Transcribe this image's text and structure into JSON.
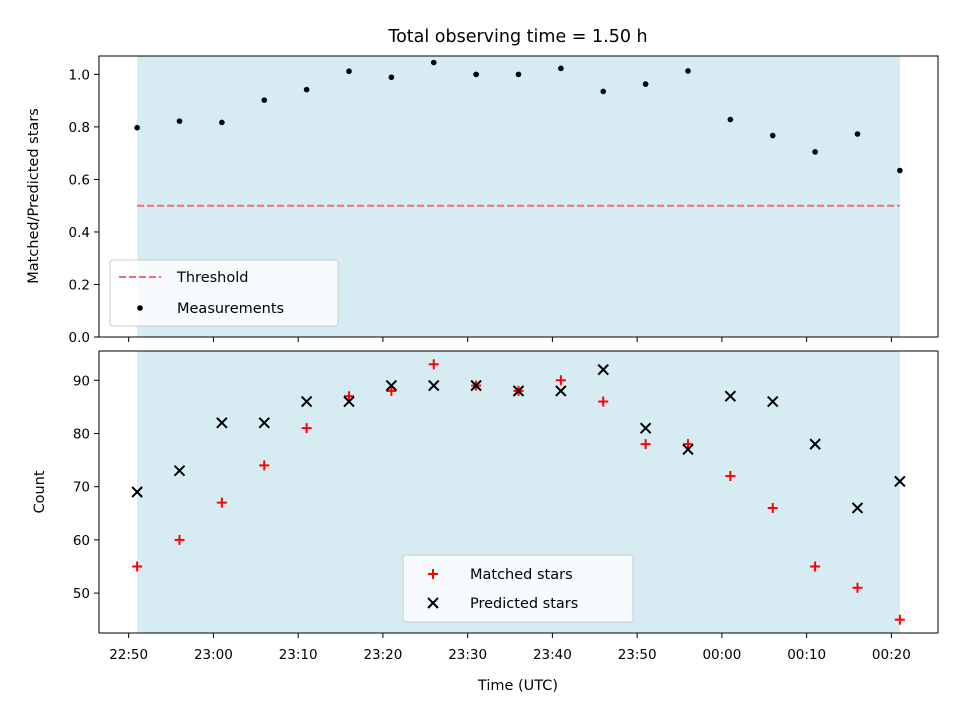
{
  "chart_data": [
    {
      "type": "scatter",
      "title": "Total observing time = 1.50 h",
      "ylabel": "Matched/Predicted stars",
      "xlabel": "",
      "ylim": [
        0,
        1.07
      ],
      "yticks": [
        0.0,
        0.2,
        0.4,
        0.6,
        0.8,
        1.0
      ],
      "ytick_labels": [
        "0.0",
        "0.2",
        "0.4",
        "0.6",
        "0.8",
        "1.0"
      ],
      "xtick_labels_visible": false,
      "shaded_span": {
        "start": "22:51",
        "end": "00:21",
        "color": "#add8e6"
      },
      "threshold": {
        "name": "Threshold",
        "value": 0.5,
        "color": "#f07070",
        "style": "dashed"
      },
      "series": [
        {
          "name": "Measurements",
          "marker": "dot",
          "color": "#000000",
          "x": [
            "22:51",
            "22:56",
            "23:01",
            "23:06",
            "23:11",
            "23:16",
            "23:21",
            "23:26",
            "23:31",
            "23:36",
            "23:41",
            "23:46",
            "23:51",
            "23:56",
            "00:01",
            "00:06",
            "00:11",
            "00:16",
            "00:21"
          ],
          "values": [
            0.797,
            0.822,
            0.817,
            0.902,
            0.942,
            1.012,
            0.989,
            1.045,
            1.0,
            1.0,
            1.023,
            0.935,
            0.963,
            1.013,
            0.828,
            0.767,
            0.705,
            0.773,
            0.634
          ]
        }
      ],
      "legend": {
        "position": "lower-left",
        "entries": [
          "Threshold",
          "Measurements"
        ]
      }
    },
    {
      "type": "scatter",
      "title": "",
      "ylabel": "Count",
      "xlabel": "Time (UTC)",
      "ylim": [
        42.5,
        95.5
      ],
      "yticks": [
        50,
        60,
        70,
        80,
        90
      ],
      "ytick_labels": [
        "50",
        "60",
        "70",
        "80",
        "90"
      ],
      "x_ticks": [
        "22:50",
        "23:00",
        "23:10",
        "23:20",
        "23:30",
        "23:40",
        "23:50",
        "00:00",
        "00:10",
        "00:20"
      ],
      "shaded_span": {
        "start": "22:51",
        "end": "00:21",
        "color": "#add8e6"
      },
      "series": [
        {
          "name": "Matched stars",
          "marker": "plus",
          "color": "#ff0000",
          "x": [
            "22:51",
            "22:56",
            "23:01",
            "23:06",
            "23:11",
            "23:16",
            "23:21",
            "23:26",
            "23:31",
            "23:36",
            "23:41",
            "23:46",
            "23:51",
            "23:56",
            "00:01",
            "00:06",
            "00:11",
            "00:16",
            "00:21"
          ],
          "values": [
            55,
            60,
            67,
            74,
            81,
            87,
            88,
            93,
            89,
            88,
            90,
            86,
            78,
            78,
            72,
            66,
            55,
            51,
            45
          ]
        },
        {
          "name": "Predicted stars",
          "marker": "x",
          "color": "#000000",
          "x": [
            "22:51",
            "22:56",
            "23:01",
            "23:06",
            "23:11",
            "23:16",
            "23:21",
            "23:26",
            "23:31",
            "23:36",
            "23:41",
            "23:46",
            "23:51",
            "23:56",
            "00:01",
            "00:06",
            "00:11",
            "00:16",
            "00:21"
          ],
          "values": [
            69,
            73,
            82,
            82,
            86,
            86,
            89,
            89,
            89,
            88,
            88,
            92,
            81,
            77,
            87,
            86,
            78,
            66,
            71
          ]
        }
      ],
      "legend": {
        "position": "lower-center",
        "entries": [
          "Matched stars",
          "Predicted stars"
        ]
      }
    }
  ]
}
